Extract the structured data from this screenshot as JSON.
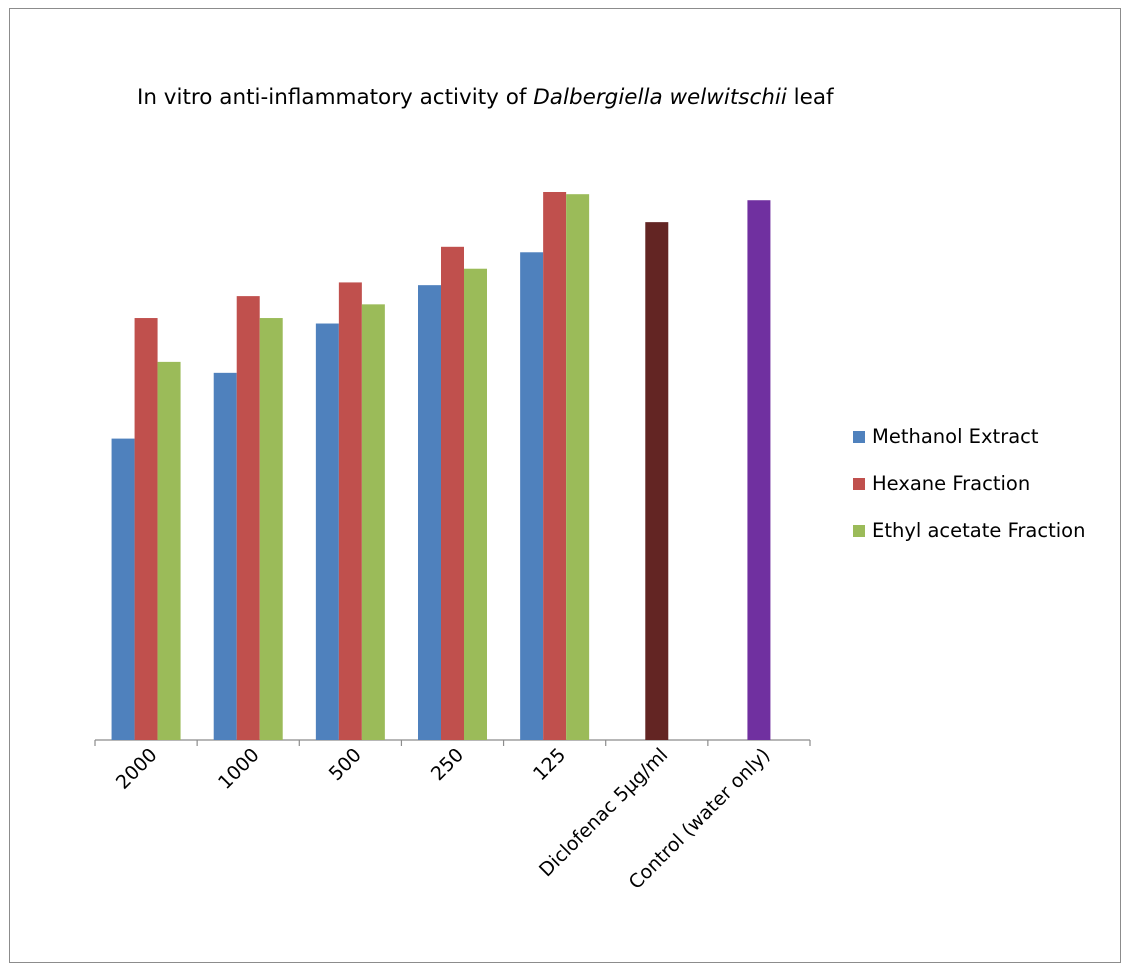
{
  "chart_data": {
    "type": "bar",
    "title_parts": [
      {
        "text": "In vitro anti-inflammatory activity of ",
        "italic": false
      },
      {
        "text": "Dalbergiella welwitschii",
        "italic": true
      },
      {
        "text": " leaf",
        "italic": false
      }
    ],
    "xlabel": "",
    "ylabel": "",
    "ylim": [
      0,
      100
    ],
    "grid": false,
    "legend_position": "right",
    "categories": [
      "2000",
      "1000",
      "500",
      "250",
      "125",
      "Diclofenac 5µg/ml",
      "Control (water only)"
    ],
    "series": [
      {
        "name": "Methanol Extract",
        "color": "#4f81bd",
        "values": [
          55,
          67,
          76,
          83,
          89,
          null,
          null
        ]
      },
      {
        "name": "Hexane Fraction",
        "color": "#c0504d",
        "values": [
          77,
          81,
          83.5,
          90,
          100,
          null,
          null
        ]
      },
      {
        "name": "Ethyl acetate Fraction",
        "color": "#9bbb59",
        "values": [
          69,
          77,
          79.5,
          86,
          99.6,
          null,
          null
        ]
      }
    ],
    "extra_bars": [
      {
        "category": "Diclofenac 5µg/ml",
        "value": 94.5,
        "color": "#632523"
      },
      {
        "category": "Control (water only)",
        "value": 98.5,
        "color": "#7030a0"
      }
    ]
  }
}
